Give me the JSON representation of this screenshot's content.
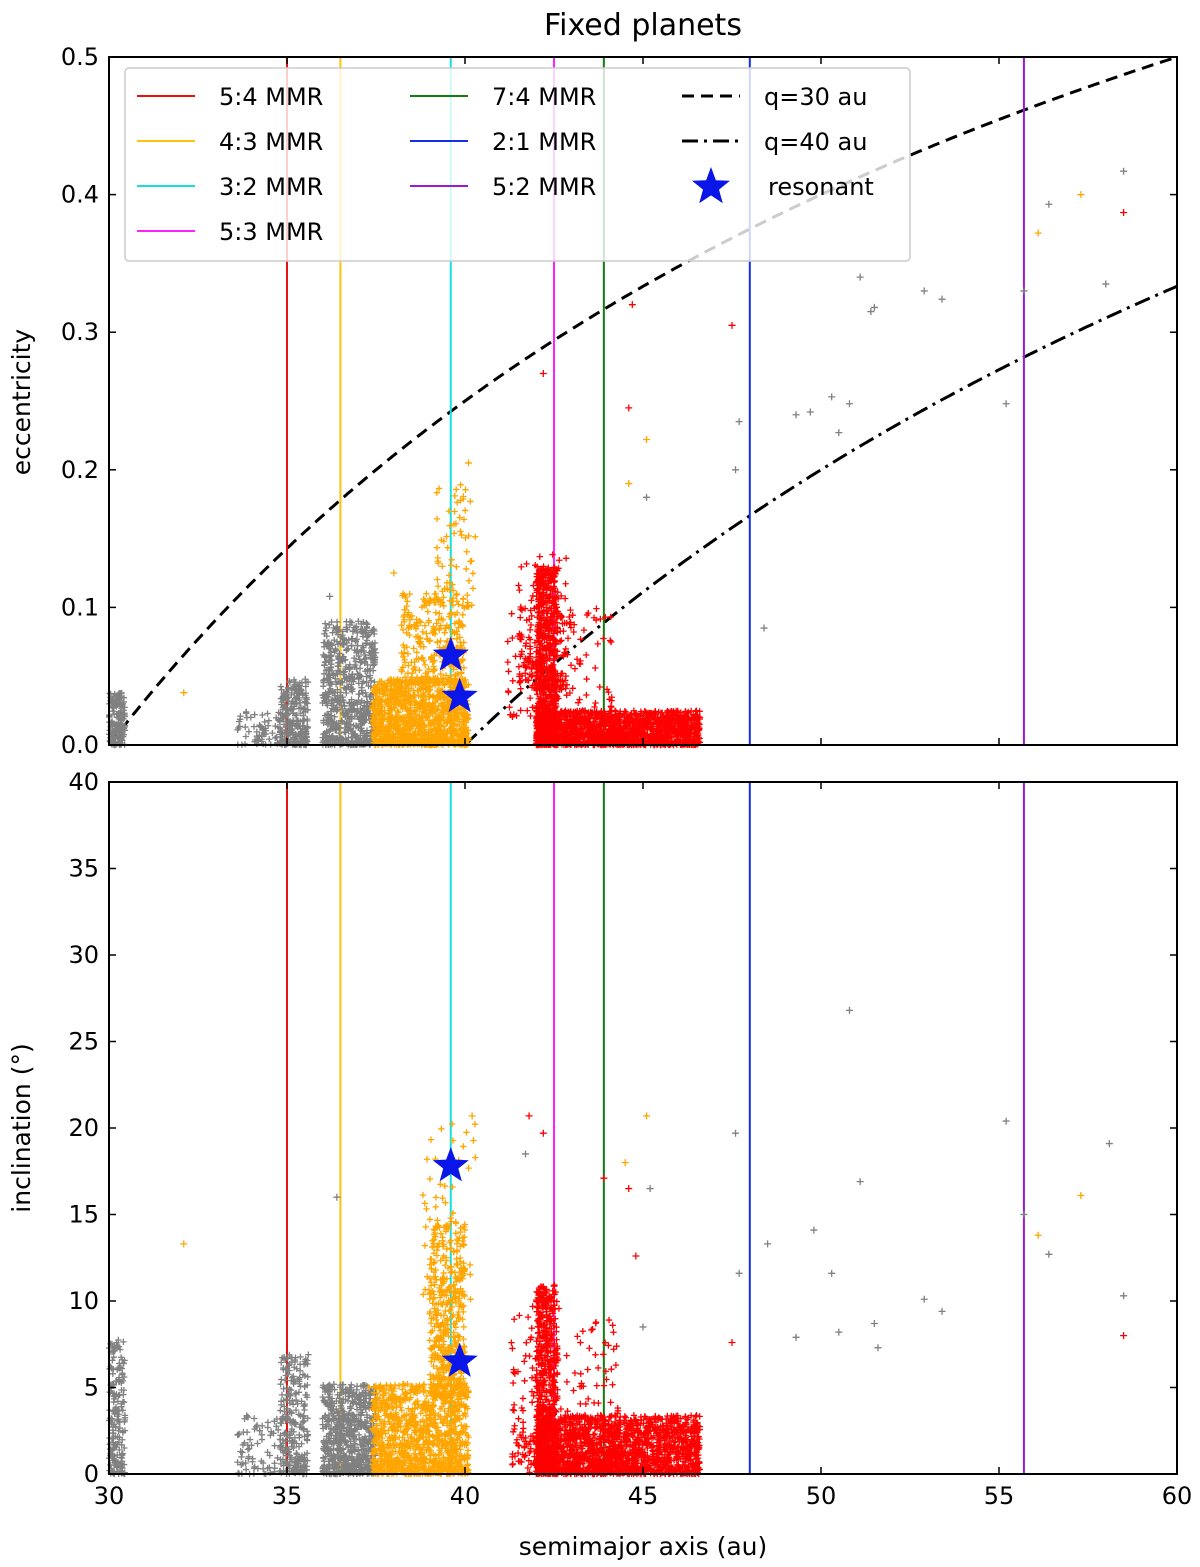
{
  "chart_data": {
    "type": "scatter",
    "title": "Fixed planets",
    "xlabel": "semimajor axis (au)",
    "xlim": [
      30,
      60
    ],
    "xticks": [
      30,
      35,
      40,
      45,
      50,
      55,
      60
    ],
    "xtick_labels": [
      "30",
      "35",
      "40",
      "45",
      "50",
      "55",
      "60"
    ],
    "resonances": [
      {
        "label": "5:4 MMR",
        "a": 35.0,
        "color": "#e8120c"
      },
      {
        "label": "4:3 MMR",
        "a": 36.5,
        "color": "#ffc20a"
      },
      {
        "label": "3:2 MMR",
        "a": 39.6,
        "color": "#15e0e0"
      },
      {
        "label": "5:3 MMR",
        "a": 42.5,
        "color": "#ff20ff"
      },
      {
        "label": "7:4 MMR",
        "a": 43.9,
        "color": "#117a11"
      },
      {
        "label": "2:1 MMR",
        "a": 48.0,
        "color": "#1530e0"
      },
      {
        "label": "5:2 MMR",
        "a": 55.7,
        "color": "#9a1ad8"
      }
    ],
    "perihelion_curves": [
      {
        "label": "q=30 au",
        "q": 30,
        "style": "dashed"
      },
      {
        "label": "q=40 au",
        "q": 40,
        "style": "dashdot"
      }
    ],
    "resonant_label": "resonant",
    "resonant_color": "#0a16e8",
    "resonant_stars": [
      {
        "a": 39.6,
        "e": 0.065,
        "i": 17.8
      },
      {
        "a": 39.85,
        "e": 0.035,
        "i": 6.5
      }
    ],
    "panels": [
      {
        "name": "eccentricity",
        "ylabel": "eccentricity",
        "ylim": [
          0,
          0.5
        ],
        "yticks": [
          0,
          0.1,
          0.2,
          0.3,
          0.4,
          0.5
        ],
        "ytick_labels": [
          "0.0",
          "0.1",
          "0.2",
          "0.3",
          "0.4",
          "0.5"
        ],
        "clusters": [
          {
            "color": "#808080",
            "count": 180,
            "x": [
              30.0,
              30.45
            ],
            "y": [
              0.0,
              0.038
            ]
          },
          {
            "color": "#808080",
            "count": 260,
            "x": [
              34.8,
              35.6
            ],
            "y": [
              0.0,
              0.048
            ]
          },
          {
            "color": "#808080",
            "count": 60,
            "x": [
              33.6,
              34.8
            ],
            "y": [
              0.0,
              0.025
            ]
          },
          {
            "color": "#808080",
            "count": 650,
            "x": [
              36.0,
              37.5
            ],
            "y": [
              0.0,
              0.09
            ]
          },
          {
            "color": "#ffa500",
            "count": 1100,
            "x": [
              37.4,
              40.1
            ],
            "y": [
              0.0,
              0.048
            ]
          },
          {
            "color": "#ffa500",
            "count": 280,
            "x": [
              38.2,
              40.0
            ],
            "y": [
              0.045,
              0.11
            ]
          },
          {
            "color": "#ffa500",
            "count": 70,
            "x": [
              39.2,
              40.3
            ],
            "y": [
              0.1,
              0.19
            ]
          },
          {
            "color": "#ff0000",
            "count": 700,
            "x": [
              42.0,
              42.6
            ],
            "y": [
              0.0,
              0.13
            ]
          },
          {
            "color": "#ff0000",
            "count": 160,
            "x": [
              41.5,
              42.9
            ],
            "y": [
              0.04,
              0.14
            ]
          },
          {
            "color": "#ff0000",
            "count": 1600,
            "x": [
              42.0,
              46.6
            ],
            "y": [
              0.0,
              0.025
            ]
          },
          {
            "color": "#ff0000",
            "count": 130,
            "x": [
              41.2,
              44.2
            ],
            "y": [
              0.02,
              0.1
            ]
          }
        ],
        "points": [
          {
            "a": 32.1,
            "e": 0.038,
            "c": "#ffa500"
          },
          {
            "a": 36.2,
            "e": 0.108,
            "c": "#808080"
          },
          {
            "a": 38.0,
            "e": 0.125,
            "c": "#ffa500"
          },
          {
            "a": 40.1,
            "e": 0.205,
            "c": "#ffa500"
          },
          {
            "a": 42.2,
            "e": 0.27,
            "c": "#ff0000"
          },
          {
            "a": 44.6,
            "e": 0.245,
            "c": "#ff0000"
          },
          {
            "a": 44.7,
            "e": 0.32,
            "c": "#ff0000"
          },
          {
            "a": 45.1,
            "e": 0.222,
            "c": "#ffa500"
          },
          {
            "a": 44.6,
            "e": 0.19,
            "c": "#ffa500"
          },
          {
            "a": 45.1,
            "e": 0.18,
            "c": "#808080"
          },
          {
            "a": 47.5,
            "e": 0.305,
            "c": "#ff0000"
          },
          {
            "a": 47.6,
            "e": 0.2,
            "c": "#808080"
          },
          {
            "a": 47.7,
            "e": 0.235,
            "c": "#808080"
          },
          {
            "a": 48.4,
            "e": 0.085,
            "c": "#808080"
          },
          {
            "a": 49.3,
            "e": 0.24,
            "c": "#808080"
          },
          {
            "a": 49.7,
            "e": 0.242,
            "c": "#808080"
          },
          {
            "a": 50.3,
            "e": 0.253,
            "c": "#808080"
          },
          {
            "a": 50.5,
            "e": 0.227,
            "c": "#808080"
          },
          {
            "a": 50.8,
            "e": 0.248,
            "c": "#808080"
          },
          {
            "a": 51.1,
            "e": 0.34,
            "c": "#808080"
          },
          {
            "a": 51.4,
            "e": 0.315,
            "c": "#808080"
          },
          {
            "a": 51.5,
            "e": 0.318,
            "c": "#808080"
          },
          {
            "a": 52.9,
            "e": 0.33,
            "c": "#808080"
          },
          {
            "a": 53.4,
            "e": 0.324,
            "c": "#808080"
          },
          {
            "a": 55.2,
            "e": 0.248,
            "c": "#808080"
          },
          {
            "a": 55.7,
            "e": 0.33,
            "c": "#808080"
          },
          {
            "a": 56.1,
            "e": 0.372,
            "c": "#ffa500"
          },
          {
            "a": 56.4,
            "e": 0.393,
            "c": "#808080"
          },
          {
            "a": 57.3,
            "e": 0.4,
            "c": "#ffa500"
          },
          {
            "a": 58.0,
            "e": 0.335,
            "c": "#808080"
          },
          {
            "a": 58.5,
            "e": 0.417,
            "c": "#808080"
          },
          {
            "a": 58.5,
            "e": 0.387,
            "c": "#ff0000"
          }
        ]
      },
      {
        "name": "inclination",
        "ylabel": "inclination (°)",
        "ylim": [
          0,
          40
        ],
        "yticks": [
          0,
          5,
          10,
          15,
          20,
          25,
          30,
          35,
          40
        ],
        "ytick_labels": [
          "0",
          "5",
          "10",
          "15",
          "20",
          "25",
          "30",
          "35",
          "40"
        ],
        "clusters": [
          {
            "color": "#808080",
            "count": 180,
            "x": [
              30.0,
              30.45
            ],
            "y": [
              0.0,
              8.0
            ]
          },
          {
            "color": "#808080",
            "count": 250,
            "x": [
              34.8,
              35.6
            ],
            "y": [
              0.0,
              7.0
            ]
          },
          {
            "color": "#808080",
            "count": 70,
            "x": [
              33.6,
              34.8
            ],
            "y": [
              0.0,
              3.5
            ]
          },
          {
            "color": "#808080",
            "count": 650,
            "x": [
              36.0,
              37.5
            ],
            "y": [
              0.0,
              5.2
            ]
          },
          {
            "color": "#ffa500",
            "count": 1100,
            "x": [
              37.4,
              40.1
            ],
            "y": [
              0.0,
              5.2
            ]
          },
          {
            "color": "#ffa500",
            "count": 450,
            "x": [
              39.0,
              40.0
            ],
            "y": [
              4.5,
              14.5
            ]
          },
          {
            "color": "#ffa500",
            "count": 60,
            "x": [
              38.8,
              40.3
            ],
            "y": [
              10.0,
              20.7
            ]
          },
          {
            "color": "#ff0000",
            "count": 600,
            "x": [
              42.0,
              42.6
            ],
            "y": [
              0.0,
              11.0
            ]
          },
          {
            "color": "#ff0000",
            "count": 160,
            "x": [
              41.3,
              42.7
            ],
            "y": [
              0.0,
              10.0
            ]
          },
          {
            "color": "#ff0000",
            "count": 1700,
            "x": [
              42.0,
              46.6
            ],
            "y": [
              0.0,
              3.4
            ]
          },
          {
            "color": "#ff0000",
            "count": 90,
            "x": [
              42.8,
              44.3
            ],
            "y": [
              0.0,
              9.0
            ]
          }
        ],
        "points": [
          {
            "a": 32.1,
            "i": 13.3,
            "c": "#ffa500"
          },
          {
            "a": 33.7,
            "i": 1.3,
            "c": "#808080"
          },
          {
            "a": 36.4,
            "i": 16.0,
            "c": "#808080"
          },
          {
            "a": 37.3,
            "i": 5.0,
            "c": "#ffa500"
          },
          {
            "a": 40.2,
            "i": 20.7,
            "c": "#ffa500"
          },
          {
            "a": 41.8,
            "i": 20.7,
            "c": "#ff0000"
          },
          {
            "a": 41.7,
            "i": 18.5,
            "c": "#808080"
          },
          {
            "a": 42.2,
            "i": 19.7,
            "c": "#ff0000"
          },
          {
            "a": 43.9,
            "i": 17.1,
            "c": "#ff0000"
          },
          {
            "a": 44.5,
            "i": 18.0,
            "c": "#ffa500"
          },
          {
            "a": 44.6,
            "i": 16.5,
            "c": "#ff0000"
          },
          {
            "a": 44.8,
            "i": 12.6,
            "c": "#ff0000"
          },
          {
            "a": 45.1,
            "i": 20.7,
            "c": "#ffa500"
          },
          {
            "a": 45.2,
            "i": 16.5,
            "c": "#808080"
          },
          {
            "a": 45.0,
            "i": 8.5,
            "c": "#808080"
          },
          {
            "a": 47.5,
            "i": 7.6,
            "c": "#ff0000"
          },
          {
            "a": 47.6,
            "i": 19.7,
            "c": "#808080"
          },
          {
            "a": 47.7,
            "i": 11.6,
            "c": "#808080"
          },
          {
            "a": 48.5,
            "i": 13.3,
            "c": "#808080"
          },
          {
            "a": 49.3,
            "i": 7.9,
            "c": "#808080"
          },
          {
            "a": 49.8,
            "i": 14.1,
            "c": "#808080"
          },
          {
            "a": 50.3,
            "i": 11.6,
            "c": "#808080"
          },
          {
            "a": 50.5,
            "i": 8.2,
            "c": "#808080"
          },
          {
            "a": 50.8,
            "i": 26.8,
            "c": "#808080"
          },
          {
            "a": 51.1,
            "i": 16.9,
            "c": "#808080"
          },
          {
            "a": 51.5,
            "i": 8.7,
            "c": "#808080"
          },
          {
            "a": 51.6,
            "i": 7.3,
            "c": "#808080"
          },
          {
            "a": 52.9,
            "i": 10.1,
            "c": "#808080"
          },
          {
            "a": 53.4,
            "i": 9.4,
            "c": "#808080"
          },
          {
            "a": 55.2,
            "i": 20.4,
            "c": "#808080"
          },
          {
            "a": 55.7,
            "i": 15.0,
            "c": "#808080"
          },
          {
            "a": 56.1,
            "i": 13.8,
            "c": "#ffa500"
          },
          {
            "a": 56.4,
            "i": 12.7,
            "c": "#808080"
          },
          {
            "a": 57.3,
            "i": 16.1,
            "c": "#ffa500"
          },
          {
            "a": 58.1,
            "i": 19.1,
            "c": "#808080"
          },
          {
            "a": 58.5,
            "i": 10.3,
            "c": "#808080"
          },
          {
            "a": 58.5,
            "i": 8.0,
            "c": "#ff0000"
          }
        ]
      }
    ]
  }
}
